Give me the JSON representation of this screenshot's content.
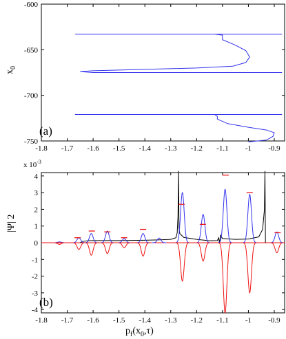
{
  "chart_data": [
    {
      "type": "line",
      "panel_label": "(a)",
      "ylabel_main": "x",
      "ylabel_sub": "0",
      "xlim": [
        -1.8,
        -0.86
      ],
      "ylim": [
        -750,
        -600
      ],
      "xticks": [
        "-1.8",
        "-1.7",
        "-1.6",
        "-1.5",
        "-1.4",
        "-1.3",
        "-1.2",
        "-1.1",
        "-1",
        "-0.9"
      ],
      "xtick_values": [
        -1.8,
        -1.7,
        -1.6,
        -1.5,
        -1.4,
        -1.3,
        -1.2,
        -1.1,
        -1.0,
        -0.9
      ],
      "yticks": [
        "-600",
        "-650",
        "-700",
        "-750"
      ],
      "ytick_values": [
        -600,
        -650,
        -700,
        -750
      ],
      "grid": false,
      "colors": {
        "curve": "#3333ee"
      },
      "series": [
        {
          "x": [
            -1.67,
            -0.87,
            -1.13,
            -1.1,
            -1.1,
            -1.05,
            -1.01,
            -0.995,
            -1.01,
            -1.06,
            -1.2,
            -1.4,
            -1.6,
            -1.65,
            -1.6,
            -1.4,
            -1.2,
            -1.0,
            -0.87
          ],
          "y": [
            -633,
            -633,
            -633,
            -634,
            -639,
            -645,
            -651,
            -658,
            -664,
            -668,
            -670,
            -671.5,
            -673,
            -674,
            -675,
            -675,
            -675,
            -675,
            -675
          ]
        },
        {
          "x": [
            -1.67,
            -0.87,
            -1.13,
            -1.12,
            -1.12,
            -1.08,
            -1.0,
            -0.93,
            -0.9,
            -0.905,
            -0.93,
            -1.0
          ],
          "y": [
            -721,
            -721,
            -721,
            -723,
            -726,
            -731,
            -735,
            -738,
            -741,
            -745,
            -749,
            -751
          ]
        }
      ]
    },
    {
      "type": "line",
      "panel_label": "(b)",
      "ylabel": "|Ψ| 2",
      "exponent_label": "x 10",
      "exponent_power": "-3",
      "xlabel_main": "p",
      "xlabel_sub": "f",
      "xlabel_tail": "(x",
      "xlabel_sub2": "0",
      "xlabel_end": ",τ)",
      "xlim": [
        -1.8,
        -0.86
      ],
      "ylim": [
        -4.2,
        4.2
      ],
      "xticks": [
        "-1.8",
        "-1.7",
        "-1.6",
        "-1.5",
        "-1.4",
        "-1.3",
        "-1.2",
        "-1.1",
        "-1",
        "-0.9"
      ],
      "xtick_values": [
        -1.8,
        -1.7,
        -1.6,
        -1.5,
        -1.4,
        -1.3,
        -1.2,
        -1.1,
        -1.0,
        -0.9
      ],
      "yticks": [
        "4",
        "3",
        "2",
        "1",
        "0",
        "-1",
        "-2",
        "-3",
        "-4"
      ],
      "ytick_values": [
        4,
        3,
        2,
        1,
        0,
        -1,
        -2,
        -3,
        -4
      ],
      "grid": false,
      "colors": {
        "blue": "#3333ee",
        "red": "#ee1111",
        "black": "#000000"
      },
      "blue_peaks": [
        {
          "x": -1.73,
          "h": 0.05
        },
        {
          "x": -1.655,
          "h": 0.3
        },
        {
          "x": -1.607,
          "h": 0.55
        },
        {
          "x": -1.545,
          "h": 0.7
        },
        {
          "x": -1.48,
          "h": 0.25
        },
        {
          "x": -1.407,
          "h": 0.55
        },
        {
          "x": -1.345,
          "h": 0.28
        },
        {
          "x": -1.255,
          "h": 3.0
        },
        {
          "x": -1.175,
          "h": 1.7
        },
        {
          "x": -1.09,
          "h": 3.2
        },
        {
          "x": -0.995,
          "h": 2.9
        },
        {
          "x": -0.89,
          "h": 0.65
        }
      ],
      "red_dips": [
        {
          "x": -1.73,
          "d": -0.1
        },
        {
          "x": -1.655,
          "d": -0.4
        },
        {
          "x": -1.607,
          "d": -0.75
        },
        {
          "x": -1.545,
          "d": -0.65
        },
        {
          "x": -1.48,
          "d": -0.3
        },
        {
          "x": -1.407,
          "d": -0.8
        },
        {
          "x": -1.255,
          "d": -2.3
        },
        {
          "x": -1.175,
          "d": -1.1
        },
        {
          "x": -1.09,
          "d": -4.2
        },
        {
          "x": -0.995,
          "d": -3.0
        },
        {
          "x": -0.89,
          "d": -0.6
        }
      ],
      "red_markers": [
        {
          "x": -1.73,
          "y": 0.0
        },
        {
          "x": -1.66,
          "y": 0.3
        },
        {
          "x": -1.605,
          "y": 0.7
        },
        {
          "x": -1.545,
          "y": 0.65
        },
        {
          "x": -1.48,
          "y": 0.3
        },
        {
          "x": -1.407,
          "y": 0.8
        },
        {
          "x": -1.258,
          "y": 2.3
        },
        {
          "x": -1.176,
          "y": 1.1
        },
        {
          "x": -1.088,
          "y": 4.05
        },
        {
          "x": -0.995,
          "y": 3.0
        },
        {
          "x": -0.887,
          "y": 0.6
        }
      ],
      "black_curve": {
        "x": [
          -1.65,
          -1.64,
          -1.62,
          -1.6,
          -1.55,
          -1.5,
          -1.45,
          -1.4,
          -1.35,
          -1.3,
          -1.28,
          -1.275,
          -1.272,
          -1.27,
          -1.268,
          -1.265,
          -1.25,
          -1.2,
          -1.15,
          -1.12,
          -1.115,
          -1.112,
          -1.11,
          -1.108,
          -1.1,
          -1.05,
          -1.0,
          -0.96,
          -0.945,
          -0.938,
          -0.936,
          -0.934
        ],
        "y": [
          0.0,
          0.08,
          0.12,
          0.13,
          0.13,
          0.13,
          0.14,
          0.15,
          0.17,
          0.2,
          0.3,
          0.6,
          1.6,
          4.3,
          0.9,
          0.55,
          0.32,
          0.2,
          0.12,
          0.13,
          0.3,
          0.0,
          0.2,
          0.45,
          0.25,
          0.2,
          0.22,
          0.35,
          0.8,
          2.0,
          4.3,
          0.0
        ]
      }
    }
  ]
}
